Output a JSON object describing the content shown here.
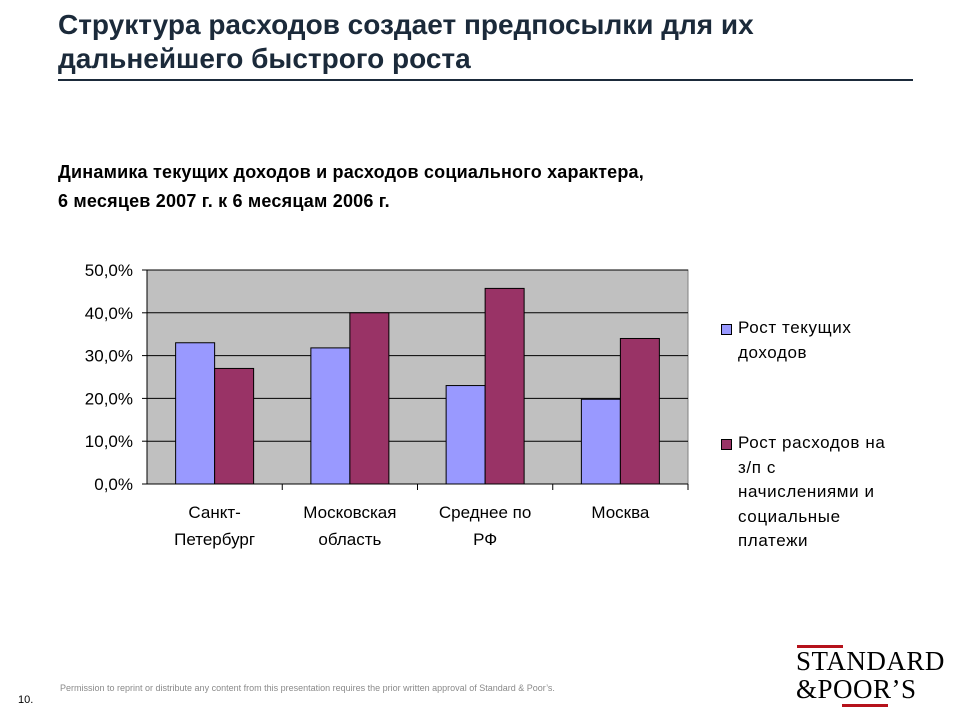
{
  "slide": {
    "title_line1": "Структура расходов создает предпосылки для их",
    "title_line2": "дальнейшего быстрого роста",
    "footer_note": "Permission to reprint or distribute any content from this presentation requires the prior written approval of Standard & Poor’s.",
    "page_number": "10.",
    "logo_line1": "STANDARD",
    "logo_line2": "&POOR’S"
  },
  "chart_data": {
    "type": "bar",
    "title_line1": "Динамика текущих доходов и расходов социального характера,",
    "title_line2": "6 месяцев 2007 г. к 6 месяцам 2006 г.",
    "categories": [
      [
        "Санкт-",
        "Петербург"
      ],
      [
        "Московская",
        "область"
      ],
      [
        "Среднее по",
        "РФ"
      ],
      [
        "Москва"
      ]
    ],
    "series": [
      {
        "name_lines": [
          "Рост текущих",
          "доходов"
        ],
        "color": "#9999ff",
        "values": [
          33.0,
          31.8,
          23.0,
          19.8
        ]
      },
      {
        "name_lines": [
          "Рост расходов на",
          "з/п с",
          "начислениями и",
          "социальные",
          "платежи"
        ],
        "color": "#993366",
        "values": [
          27.0,
          40.0,
          45.7,
          34.0
        ]
      }
    ],
    "ylim": [
      0,
      50
    ],
    "yticks": [
      "0,0%",
      "10,0%",
      "20,0%",
      "30,0%",
      "40,0%",
      "50,0%"
    ],
    "plot_background": "#c0c0c0",
    "grid": true,
    "legend_position": "right"
  }
}
